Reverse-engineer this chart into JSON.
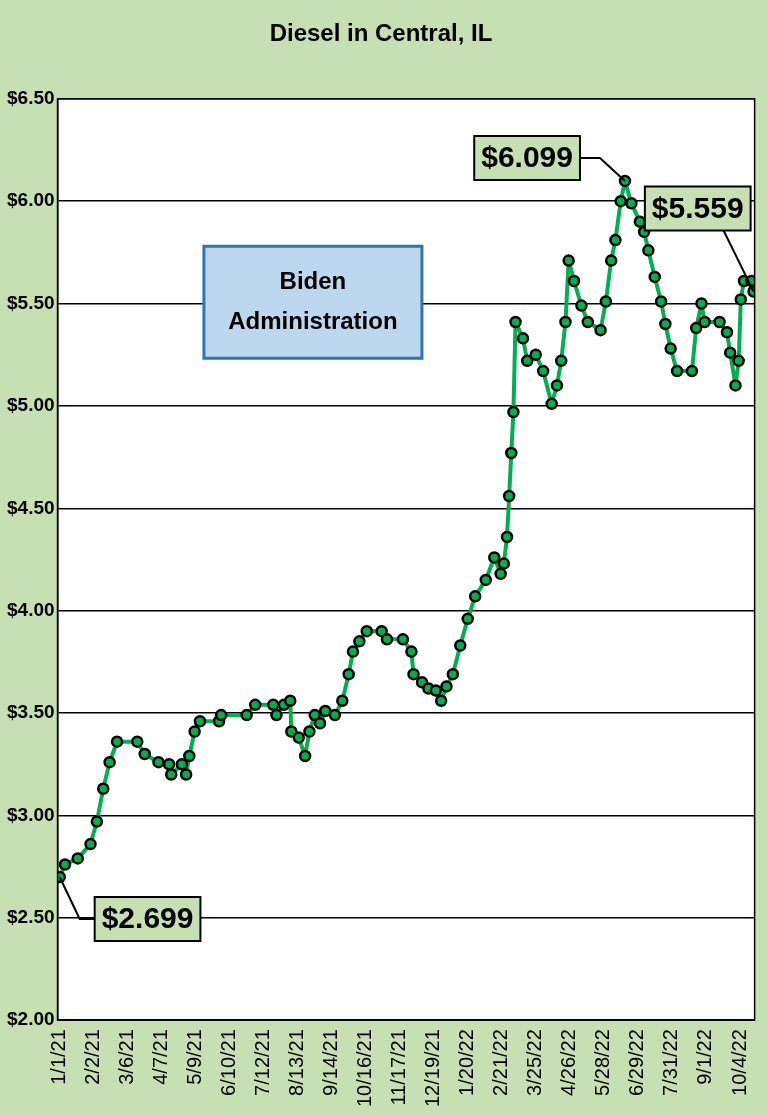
{
  "chart_data": {
    "type": "line",
    "title": "Diesel in Central, IL",
    "x": [
      "2021-01-01",
      "2021-01-06",
      "2021-01-18",
      "2021-01-30",
      "2021-02-05",
      "2021-02-11",
      "2021-02-17",
      "2021-02-24",
      "2021-03-15",
      "2021-03-22",
      "2021-04-04",
      "2021-04-14",
      "2021-04-16",
      "2021-04-26",
      "2021-04-30",
      "2021-05-03",
      "2021-05-08",
      "2021-05-13",
      "2021-05-31",
      "2021-06-02",
      "2021-06-26",
      "2021-07-04",
      "2021-07-21",
      "2021-07-24",
      "2021-07-31",
      "2021-08-06",
      "2021-08-07",
      "2021-08-14",
      "2021-08-20",
      "2021-08-24",
      "2021-08-29",
      "2021-09-03",
      "2021-09-08",
      "2021-09-17",
      "2021-09-24",
      "2021-09-30",
      "2021-10-04",
      "2021-10-10",
      "2021-10-17",
      "2021-10-31",
      "2021-11-05",
      "2021-11-20",
      "2021-11-28",
      "2021-11-30",
      "2021-12-08",
      "2021-12-14",
      "2021-12-21",
      "2021-12-26",
      "2021-12-31",
      "2022-01-06",
      "2022-01-13",
      "2022-01-20",
      "2022-01-27",
      "2022-02-06",
      "2022-02-14",
      "2022-02-20",
      "2022-02-23",
      "2022-02-26",
      "2022-02-28",
      "2022-03-02",
      "2022-03-04",
      "2022-03-06",
      "2022-03-13",
      "2022-03-17",
      "2022-03-25",
      "2022-04-01",
      "2022-04-09",
      "2022-04-14",
      "2022-04-18",
      "2022-04-22",
      "2022-04-25",
      "2022-04-30",
      "2022-05-07",
      "2022-05-13",
      "2022-05-25",
      "2022-05-30",
      "2022-06-04",
      "2022-06-08",
      "2022-06-13",
      "2022-06-17",
      "2022-06-23",
      "2022-07-01",
      "2022-07-05",
      "2022-07-09",
      "2022-07-15",
      "2022-07-21",
      "2022-07-25",
      "2022-07-30",
      "2022-08-05",
      "2022-08-19",
      "2022-08-23",
      "2022-08-28",
      "2022-08-31",
      "2022-09-14",
      "2022-09-21",
      "2022-09-24",
      "2022-09-29",
      "2022-10-02",
      "2022-10-04",
      "2022-10-07",
      "2022-10-14",
      "2022-10-16"
    ],
    "series": [
      {
        "color": "#00b050",
        "values": [
          2.699,
          2.76,
          2.79,
          2.86,
          2.97,
          3.13,
          3.26,
          3.36,
          3.36,
          3.3,
          3.26,
          3.25,
          3.2,
          3.25,
          3.2,
          3.29,
          3.41,
          3.46,
          3.46,
          3.49,
          3.49,
          3.54,
          3.54,
          3.49,
          3.54,
          3.56,
          3.41,
          3.38,
          3.29,
          3.41,
          3.49,
          3.45,
          3.51,
          3.49,
          3.56,
          3.69,
          3.8,
          3.85,
          3.9,
          3.9,
          3.86,
          3.86,
          3.8,
          3.69,
          3.65,
          3.62,
          3.61,
          3.56,
          3.63,
          3.69,
          3.83,
          3.96,
          4.07,
          4.15,
          4.26,
          4.18,
          4.23,
          4.36,
          4.56,
          4.77,
          4.97,
          5.41,
          5.33,
          5.22,
          5.25,
          5.17,
          5.01,
          5.1,
          5.22,
          5.41,
          5.71,
          5.61,
          5.49,
          5.41,
          5.37,
          5.51,
          5.71,
          5.81,
          6.0,
          6.099,
          5.99,
          5.9,
          5.85,
          5.76,
          5.63,
          5.51,
          5.4,
          5.28,
          5.17,
          5.17,
          5.38,
          5.5,
          5.41,
          5.41,
          5.36,
          5.26,
          5.1,
          5.22,
          5.52,
          5.61,
          5.61,
          5.559
        ]
      }
    ],
    "xlim": [
      "2020-12-30",
      "2022-10-17"
    ],
    "xticks": [
      {
        "value": "2021-01-01",
        "label": "1/1/21"
      },
      {
        "value": "2021-02-02",
        "label": "2/2/21"
      },
      {
        "value": "2021-03-06",
        "label": "3/6/21"
      },
      {
        "value": "2021-04-07",
        "label": "4/7/21"
      },
      {
        "value": "2021-05-09",
        "label": "5/9/21"
      },
      {
        "value": "2021-06-10",
        "label": "6/10/21"
      },
      {
        "value": "2021-07-12",
        "label": "7/12/21"
      },
      {
        "value": "2021-08-13",
        "label": "8/13/21"
      },
      {
        "value": "2021-09-14",
        "label": "9/14/21"
      },
      {
        "value": "2021-10-16",
        "label": "10/16/21"
      },
      {
        "value": "2021-11-17",
        "label": "11/17/21"
      },
      {
        "value": "2021-12-19",
        "label": "12/19/21"
      },
      {
        "value": "2022-01-20",
        "label": "1/20/22"
      },
      {
        "value": "2022-02-21",
        "label": "2/21/22"
      },
      {
        "value": "2022-03-25",
        "label": "3/25/22"
      },
      {
        "value": "2022-04-26",
        "label": "4/26/22"
      },
      {
        "value": "2022-05-28",
        "label": "5/28/22"
      },
      {
        "value": "2022-06-29",
        "label": "6/29/22"
      },
      {
        "value": "2022-07-31",
        "label": "7/31/22"
      },
      {
        "value": "2022-09-01",
        "label": "9/1/22"
      },
      {
        "value": "2022-10-04",
        "label": "10/4/22"
      }
    ],
    "ylim": [
      2,
      6.5
    ],
    "yticks": [
      {
        "value": 2,
        "label": "$2.00"
      },
      {
        "value": 2.5,
        "label": "$2.50"
      },
      {
        "value": 3,
        "label": "$3.00"
      },
      {
        "value": 3.5,
        "label": "$3.50"
      },
      {
        "value": 4,
        "label": "$4.00"
      },
      {
        "value": 4.5,
        "label": "$4.50"
      },
      {
        "value": 5,
        "label": "$5.00"
      },
      {
        "value": 5.5,
        "label": "$5.50"
      },
      {
        "value": 6,
        "label": "$6.00"
      },
      {
        "value": 6.5,
        "label": "$6.50"
      }
    ],
    "grid": "y",
    "legend": false,
    "marker": "circle",
    "line_style": "solid",
    "annotations": [
      {
        "text": "$2.699",
        "x": "2021-01-01",
        "y": 2.699
      },
      {
        "text": "$6.099",
        "x": "2022-06-17",
        "y": 6.099
      },
      {
        "text": "$5.559",
        "x": "2022-10-16",
        "y": 5.559
      },
      "Biden Administration"
    ]
  }
}
